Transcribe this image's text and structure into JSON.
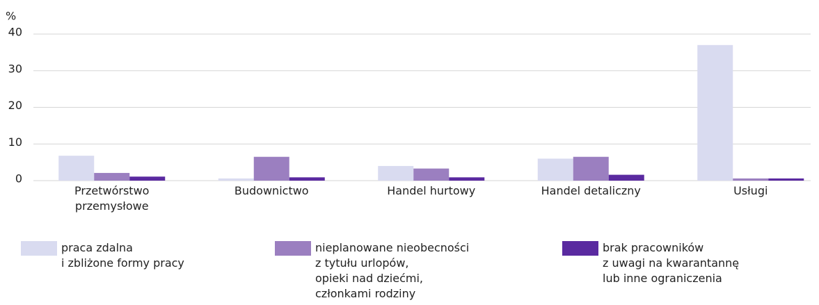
{
  "chart_data": {
    "type": "bar",
    "y_label": "%",
    "categories": [
      "Przetwórstwo\nprzemysłowe",
      "Budownictwo",
      "Handel hurtowy",
      "Handel detaliczny",
      "Usługi"
    ],
    "series": [
      {
        "name": "praca zdalna\ni zbliżone formy pracy",
        "color": "#d9dbf0",
        "values": [
          6.8,
          0.6,
          4.0,
          6.0,
          37.0
        ]
      },
      {
        "name": "nieplanowane nieobecności\nz tytułu urlopów,\nopieki nad dziećmi,\nczłonkami rodziny",
        "color": "#9b7fc0",
        "values": [
          2.1,
          6.5,
          3.3,
          6.5,
          0.6
        ]
      },
      {
        "name": "brak pracowników\nz uwagi na kwarantannę\nlub inne ograniczenia",
        "color": "#5a2aa0",
        "values": [
          1.1,
          0.9,
          0.9,
          1.6,
          0.6
        ]
      }
    ],
    "ylim": [
      0,
      40
    ],
    "yticks": [
      0,
      10,
      20,
      30,
      40
    ],
    "grid": true
  }
}
